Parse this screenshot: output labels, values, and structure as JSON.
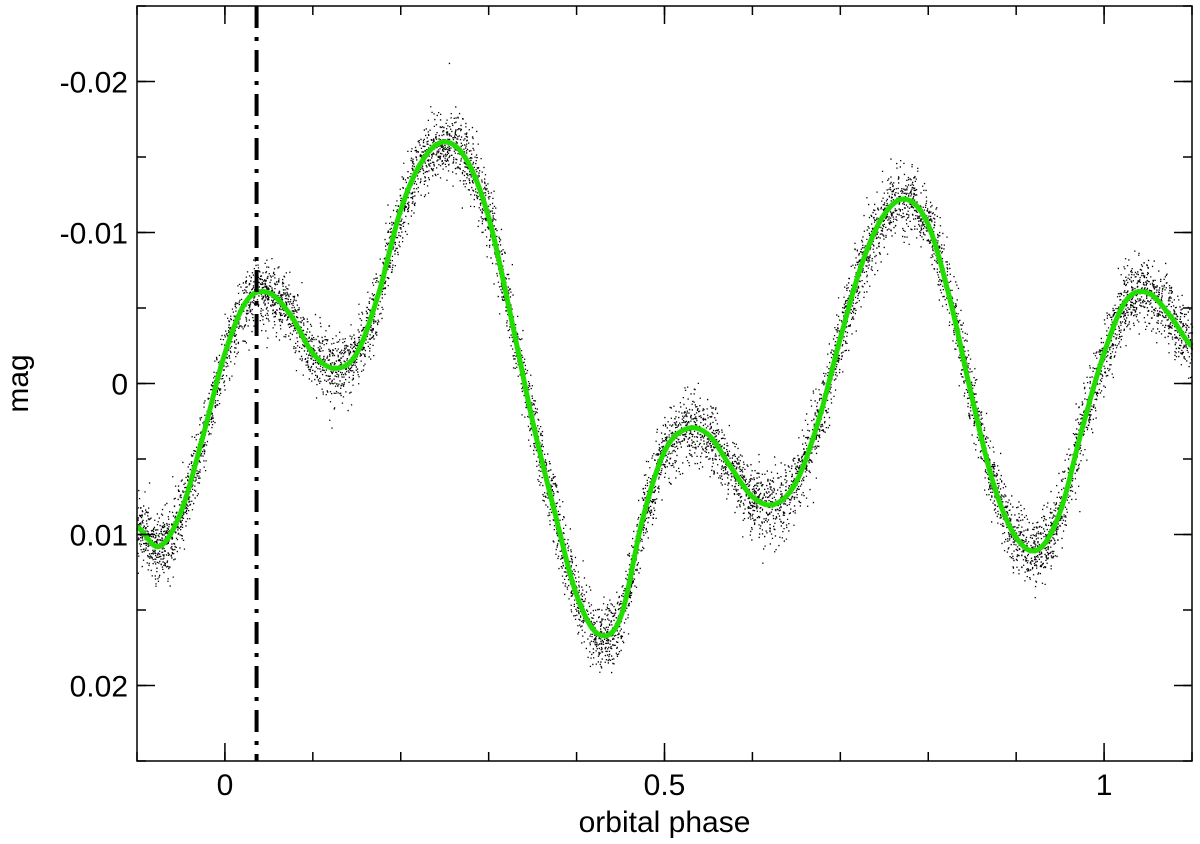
{
  "chart_data": {
    "type": "scatter",
    "title": "",
    "xlabel": "orbital phase",
    "ylabel": "mag",
    "xlim": [
      -0.1,
      1.1
    ],
    "ylim": [
      0.025,
      -0.025
    ],
    "y_inverted": true,
    "grid": false,
    "x_ticks": [
      {
        "value": 0,
        "label": "0"
      },
      {
        "value": 0.5,
        "label": "0.5"
      },
      {
        "value": 1,
        "label": "1"
      }
    ],
    "y_ticks": [
      {
        "value": -0.02,
        "label": "-0.02"
      },
      {
        "value": -0.01,
        "label": "-0.01"
      },
      {
        "value": 0,
        "label": "0"
      },
      {
        "value": 0.01,
        "label": "0.01"
      },
      {
        "value": 0.02,
        "label": "0.02"
      }
    ],
    "x_minor_step": 0.1,
    "y_minor_step": 0.005,
    "vertical_line": {
      "x": 0.036,
      "style": "dash-dot",
      "color": "#000000"
    },
    "series": [
      {
        "kind": "scatter-band",
        "color": "#000000",
        "scatter_sigma": 0.0011
      },
      {
        "kind": "line",
        "color": "#22dd00",
        "x": [
          -0.1,
          -0.075,
          -0.05,
          -0.025,
          0.0,
          0.025,
          0.05,
          0.075,
          0.1,
          0.125,
          0.15,
          0.175,
          0.2,
          0.225,
          0.25,
          0.275,
          0.3,
          0.325,
          0.35,
          0.375,
          0.4,
          0.425,
          0.45,
          0.475,
          0.5,
          0.525,
          0.55,
          0.575,
          0.6,
          0.625,
          0.65,
          0.675,
          0.7,
          0.725,
          0.75,
          0.775,
          0.8,
          0.825,
          0.85,
          0.875,
          0.9,
          0.925,
          0.95,
          0.975,
          1.0,
          1.025,
          1.05,
          1.075,
          1.1
        ],
        "values": [
          0.0095,
          0.0108,
          0.0085,
          0.0035,
          -0.002,
          -0.0055,
          -0.006,
          -0.0045,
          -0.002,
          -0.001,
          -0.002,
          -0.006,
          -0.0115,
          -0.0148,
          -0.016,
          -0.0148,
          -0.011,
          -0.0045,
          0.0025,
          0.0085,
          0.014,
          0.0166,
          0.0155,
          0.009,
          0.0045,
          0.003,
          0.0034,
          0.0055,
          0.0075,
          0.008,
          0.0065,
          0.0025,
          -0.003,
          -0.008,
          -0.0112,
          -0.0122,
          -0.0105,
          -0.0055,
          0.001,
          0.0068,
          0.0102,
          0.011,
          0.0085,
          0.003,
          -0.002,
          -0.0055,
          -0.006,
          -0.0045,
          -0.0025
        ]
      }
    ]
  }
}
